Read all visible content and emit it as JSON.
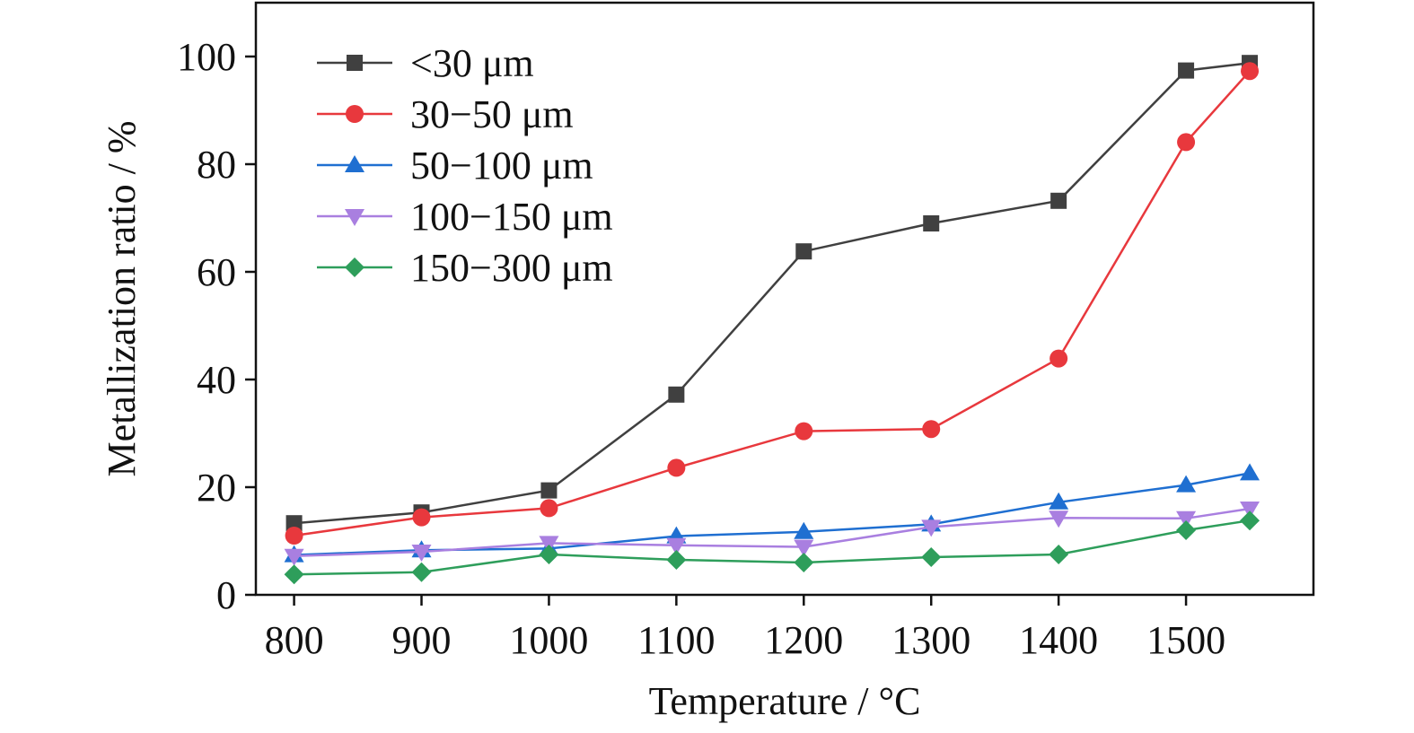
{
  "chart_data": {
    "type": "line",
    "xlabel": "Temperature / °C",
    "ylabel": "Metallization ratio / %",
    "xlim": [
      770,
      1600
    ],
    "ylim": [
      0,
      110
    ],
    "xticks": [
      800,
      900,
      1000,
      1100,
      1200,
      1300,
      1400,
      1500
    ],
    "yticks": [
      0,
      20,
      40,
      60,
      80,
      100
    ],
    "grid": false,
    "legend_position": "top-left",
    "x": [
      800,
      900,
      1000,
      1100,
      1200,
      1300,
      1400,
      1500,
      1550
    ],
    "series": [
      {
        "name": "<30 μm",
        "marker": "square",
        "color": "#404040",
        "values": [
          13.3,
          15.3,
          19.4,
          37.2,
          63.8,
          69.0,
          73.2,
          97.4,
          98.8
        ]
      },
      {
        "name": "30−50 μm",
        "marker": "circle",
        "color": "#e8383d",
        "values": [
          11.0,
          14.4,
          16.1,
          23.6,
          30.4,
          30.8,
          43.9,
          84.1,
          97.3
        ]
      },
      {
        "name": "50−100 μm",
        "marker": "triangle-up",
        "color": "#1f6fd1",
        "values": [
          7.4,
          8.3,
          8.6,
          10.9,
          11.7,
          13.1,
          17.2,
          20.4,
          22.6
        ]
      },
      {
        "name": "100−150 μm",
        "marker": "triangle-down",
        "color": "#a97fe0",
        "values": [
          7.2,
          8.0,
          9.6,
          9.2,
          8.9,
          12.6,
          14.3,
          14.2,
          16.0
        ]
      },
      {
        "name": "150−300 μm",
        "marker": "diamond",
        "color": "#2e9e5b",
        "values": [
          3.8,
          4.2,
          7.5,
          6.5,
          6.0,
          7.0,
          7.5,
          12.0,
          13.8
        ]
      }
    ]
  }
}
